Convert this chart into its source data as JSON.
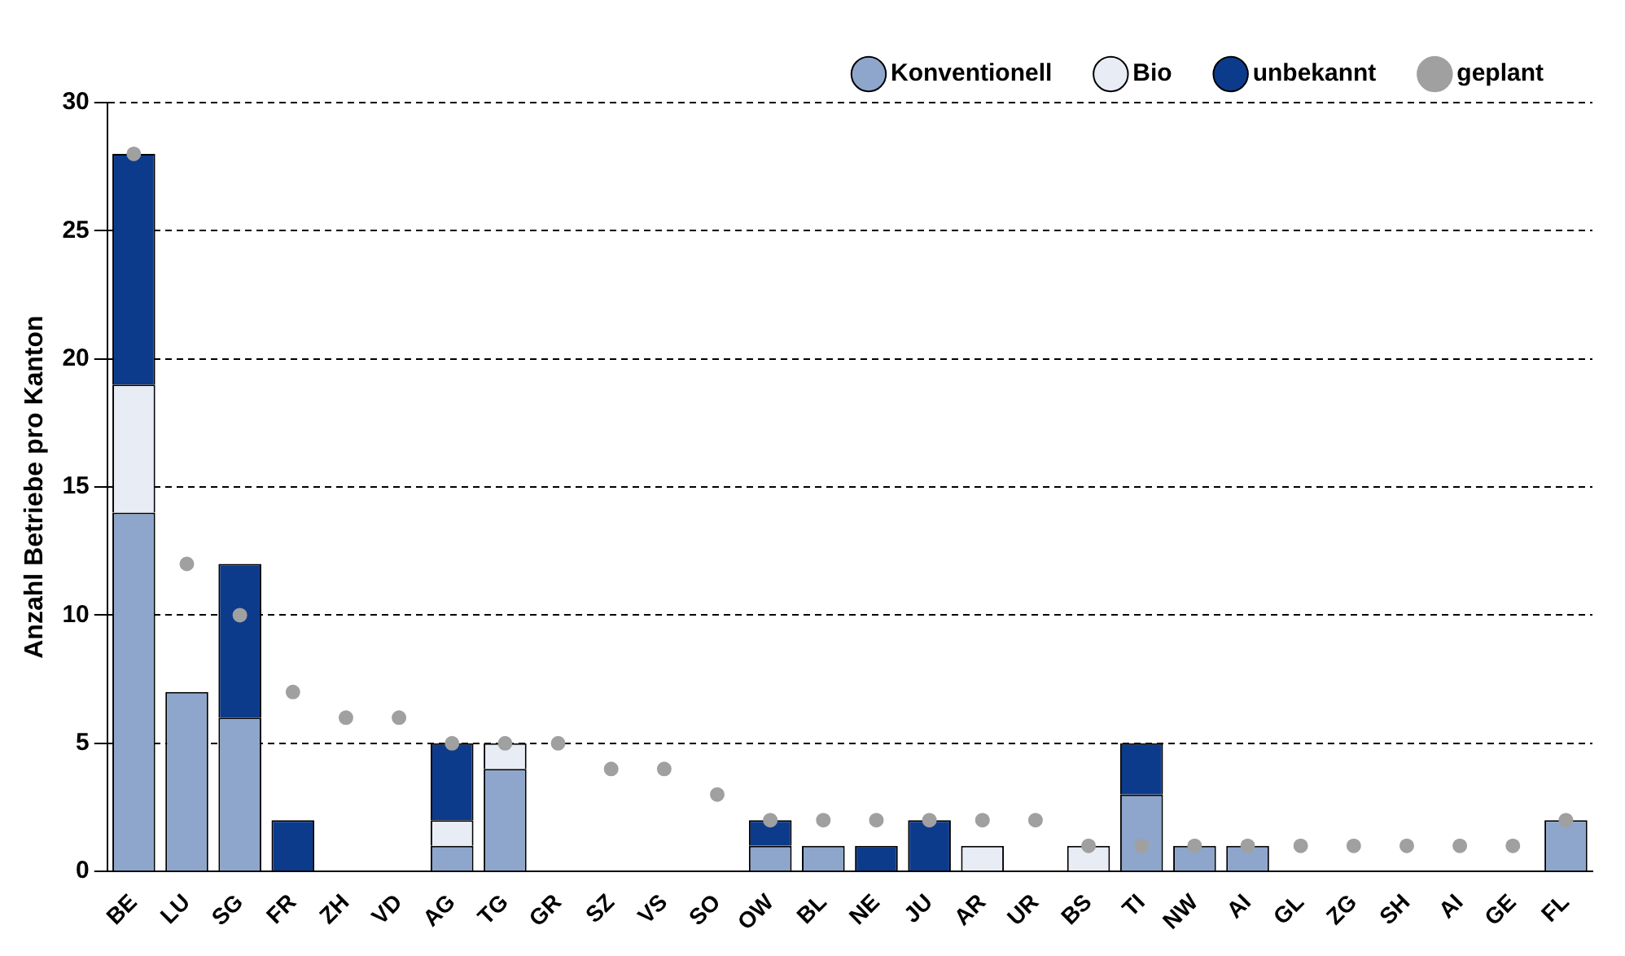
{
  "chart_data": {
    "type": "bar",
    "stacked": true,
    "ylabel": "Anzahl Betriebe pro Kanton",
    "categories": [
      "BE",
      "LU",
      "SG",
      "FR",
      "ZH",
      "VD",
      "AG",
      "TG",
      "GR",
      "SZ",
      "VS",
      "SO",
      "OW",
      "BL",
      "NE",
      "JU",
      "AR",
      "UR",
      "BS",
      "TI",
      "NW",
      "AI",
      "GL",
      "ZG",
      "SH",
      "AI",
      "GE",
      "FL"
    ],
    "series": [
      {
        "name": "Konventionell",
        "color": "#8ea6cc",
        "values": [
          14,
          7,
          6,
          0,
          0,
          0,
          1,
          4,
          0,
          0,
          0,
          0,
          1,
          1,
          0,
          0,
          0,
          0,
          0,
          3,
          1,
          1,
          0,
          0,
          0,
          0,
          0,
          2
        ]
      },
      {
        "name": "Bio",
        "color": "#e8ecf4",
        "values": [
          5,
          0,
          0,
          0,
          0,
          0,
          1,
          1,
          0,
          0,
          0,
          0,
          0,
          0,
          0,
          0,
          1,
          0,
          1,
          0,
          0,
          0,
          0,
          0,
          0,
          0,
          0,
          0
        ]
      },
      {
        "name": "unbekannt",
        "color": "#0d3b8c",
        "values": [
          9,
          0,
          6,
          2,
          0,
          0,
          3,
          0,
          0,
          0,
          0,
          0,
          1,
          0,
          1,
          2,
          0,
          0,
          0,
          2,
          0,
          0,
          0,
          0,
          0,
          0,
          0,
          0
        ]
      },
      {
        "name": "geplant",
        "type": "scatter",
        "marker": "circle",
        "color": "#a0a0a0",
        "values": [
          28,
          12,
          10,
          7,
          6,
          6,
          5,
          5,
          5,
          4,
          4,
          3,
          2,
          2,
          2,
          2,
          2,
          2,
          1,
          1,
          1,
          1,
          1,
          1,
          1,
          1,
          1,
          2
        ]
      }
    ],
    "ylim": [
      0,
      30
    ],
    "yticks": [
      0,
      5,
      10,
      15,
      20,
      25,
      30
    ],
    "grid": "y",
    "legend": "top"
  }
}
